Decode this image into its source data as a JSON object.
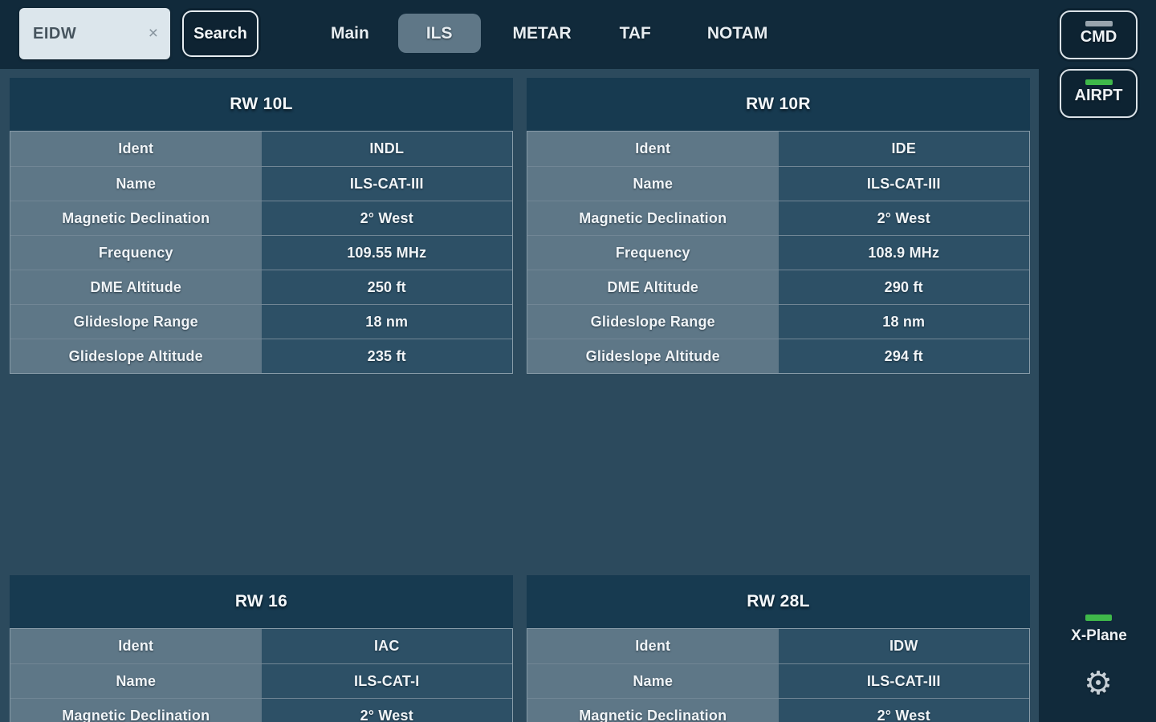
{
  "topbar": {
    "search": {
      "value": "EIDW",
      "clear_icon": "×",
      "button_label": "Search"
    },
    "tabs": [
      {
        "label": "Main",
        "active": false
      },
      {
        "label": "ILS",
        "active": true
      },
      {
        "label": "METAR",
        "active": false
      },
      {
        "label": "TAF",
        "active": false
      },
      {
        "label": "NOTAM",
        "active": false
      }
    ]
  },
  "sidebar": {
    "cmd_label": "CMD",
    "airpt_label": "AIRPT",
    "xplane_label": "X-Plane",
    "gear_icon": "⚙",
    "cmd_indicator_color": "#98a4ad",
    "airpt_indicator_color": "#3fb94a",
    "xplane_indicator_color": "#3fb94a"
  },
  "tables": [
    {
      "title": "RW 10L",
      "rows": [
        [
          "Ident",
          "INDL"
        ],
        [
          "Name",
          "ILS-CAT-III"
        ],
        [
          "Magnetic Declination",
          "2° West"
        ],
        [
          "Frequency",
          "109.55 MHz"
        ],
        [
          "DME Altitude",
          "250 ft"
        ],
        [
          "Glideslope Range",
          "18 nm"
        ],
        [
          "Glideslope Altitude",
          "235 ft"
        ]
      ]
    },
    {
      "title": "RW 10R",
      "rows": [
        [
          "Ident",
          "IDE"
        ],
        [
          "Name",
          "ILS-CAT-III"
        ],
        [
          "Magnetic Declination",
          "2° West"
        ],
        [
          "Frequency",
          "108.9 MHz"
        ],
        [
          "DME Altitude",
          "290 ft"
        ],
        [
          "Glideslope Range",
          "18 nm"
        ],
        [
          "Glideslope Altitude",
          "294 ft"
        ]
      ]
    },
    {
      "title": "RW 16",
      "rows": [
        [
          "Ident",
          "IAC"
        ],
        [
          "Name",
          "ILS-CAT-I"
        ],
        [
          "Magnetic Declination",
          "2° West"
        ]
      ]
    },
    {
      "title": "RW 28L",
      "rows": [
        [
          "Ident",
          "IDW"
        ],
        [
          "Name",
          "ILS-CAT-III"
        ],
        [
          "Magnetic Declination",
          "2° West"
        ]
      ]
    }
  ],
  "colors": {
    "background": "#112a3b",
    "content_panel": "#2c4a5d",
    "table_header": "#173a50",
    "label_cell": "#5e7787",
    "value_cell": "#2d5066",
    "active_tab": "#5f7787",
    "search_input_bg": "#dce6ec",
    "green_indicator": "#3fb94a",
    "gray_indicator": "#98a4ad"
  }
}
